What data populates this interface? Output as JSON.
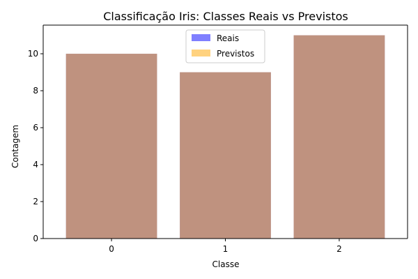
{
  "chart_data": {
    "type": "bar",
    "title": "Classificação Iris: Classes Reais vs Previstos",
    "xlabel": "Classe",
    "ylabel": "Contagem",
    "categories": [
      "0",
      "1",
      "2"
    ],
    "series": [
      {
        "name": "Reais",
        "values": [
          10,
          9,
          11
        ],
        "color": "#0000ff",
        "alpha": 0.5
      },
      {
        "name": "Previstos",
        "values": [
          10,
          9,
          11
        ],
        "color": "#ffa500",
        "alpha": 0.5
      }
    ],
    "ylim": [
      0,
      11.55
    ],
    "yticks": [
      0,
      2,
      4,
      6,
      8,
      10
    ],
    "grid": false,
    "legend": "top-center"
  }
}
